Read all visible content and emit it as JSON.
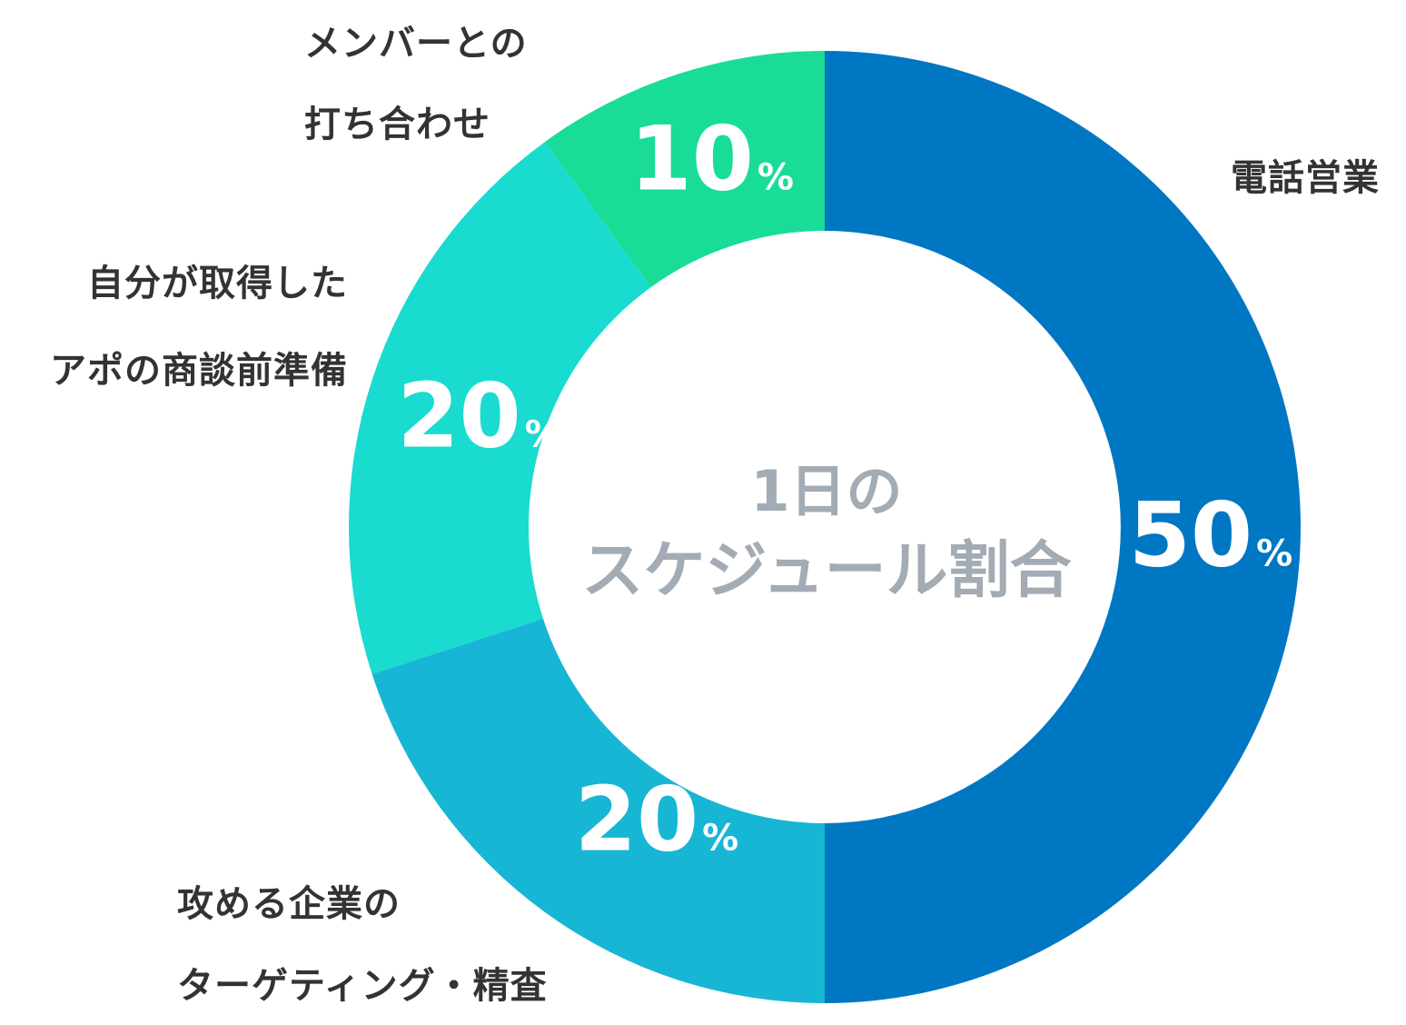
{
  "chart_data": {
    "type": "pie",
    "title": "1日のスケジュール割合",
    "title_lines": [
      "1日の",
      "スケジュール割合"
    ],
    "unit": "%",
    "slices": [
      {
        "label_lines": [
          "電話営業"
        ],
        "value": 50,
        "color": "#0077c2"
      },
      {
        "label_lines": [
          "攻める企業の",
          "ターゲティング・精査"
        ],
        "value": 20,
        "color": "#17b6d5"
      },
      {
        "label_lines": [
          "自分が取得した",
          "アポの商談前準備"
        ],
        "value": 20,
        "color": "#19dbd0"
      },
      {
        "label_lines": [
          "メンバーとの",
          "打ち合わせ"
        ],
        "value": 10,
        "color": "#19dc97"
      }
    ]
  }
}
